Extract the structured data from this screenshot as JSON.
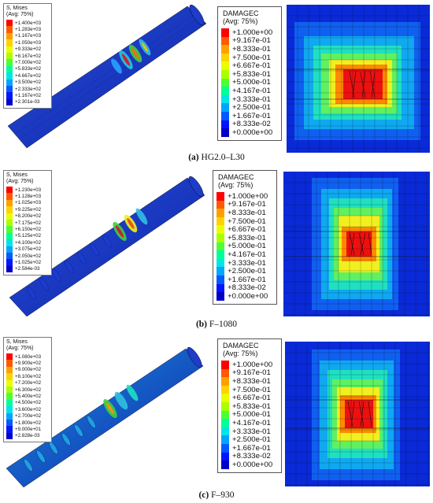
{
  "panels": [
    {
      "caption_letter": "(a)",
      "caption_text": "HG2.0–L30",
      "stress_legend": {
        "title": "S, Mises",
        "subtitle": "(Avg: 75%)",
        "labels": [
          "+1.400e+03",
          "+1.283e+03",
          "+1.167e+03",
          "+1.050e+03",
          "+9.333e+02",
          "+8.167e+02",
          "+7.000e+02",
          "+5.833e+02",
          "+4.667e+02",
          "+3.500e+02",
          "+2.333e+02",
          "+1.167e+02",
          "+2.301e-03"
        ]
      },
      "damage_legend": {
        "title": "DAMAGEC",
        "subtitle": "(Avg: 75%)",
        "labels": [
          "+1.000e+00",
          "+9.167e-01",
          "+8.333e-01",
          "+7.500e-01",
          "+6.667e-01",
          "+5.833e-01",
          "+5.000e-01",
          "+4.167e-01",
          "+3.333e-01",
          "+2.500e-01",
          "+1.667e-01",
          "+8.333e-02",
          "+0.000e+00"
        ]
      }
    },
    {
      "caption_letter": "(b)",
      "caption_text": "F–1080",
      "stress_legend": {
        "title": "S, Mises",
        "subtitle": "(Avg: 75%)",
        "labels": [
          "+1.230e+03",
          "+1.128e+03",
          "+1.025e+03",
          "+9.225e+02",
          "+8.200e+02",
          "+7.175e+02",
          "+6.150e+02",
          "+5.125e+02",
          "+4.100e+02",
          "+3.075e+02",
          "+2.050e+02",
          "+1.025e+02",
          "+2.584e-03"
        ]
      },
      "damage_legend": {
        "title": "DAMAGEC",
        "subtitle": "(Avg: 75%)",
        "labels": [
          "+1.000e+00",
          "+9.167e-01",
          "+8.333e-01",
          "+7.500e-01",
          "+6.667e-01",
          "+5.833e-01",
          "+5.000e-01",
          "+4.167e-01",
          "+3.333e-01",
          "+2.500e-01",
          "+1.667e-01",
          "+8.333e-02",
          "+0.000e+00"
        ]
      }
    },
    {
      "caption_letter": "(c)",
      "caption_text": "F–930",
      "stress_legend": {
        "title": "S, Mises",
        "subtitle": "(Avg: 75%)",
        "labels": [
          "+1.080e+03",
          "+9.900e+02",
          "+9.000e+02",
          "+8.100e+02",
          "+7.200e+02",
          "+6.300e+02",
          "+5.400e+02",
          "+4.500e+02",
          "+3.600e+02",
          "+2.700e+02",
          "+1.800e+02",
          "+9.000e+01",
          "+2.828e-03"
        ]
      },
      "damage_legend": {
        "title": "DAMAGEC",
        "subtitle": "(Avg: 75%)",
        "labels": [
          "+1.000e+00",
          "+9.167e-01",
          "+8.333e-01",
          "+7.500e-01",
          "+6.667e-01",
          "+5.833e-01",
          "+5.000e-01",
          "+4.167e-01",
          "+3.333e-01",
          "+2.500e-01",
          "+1.667e-01",
          "+8.333e-02",
          "+0.000e+00"
        ]
      }
    }
  ],
  "colors": {
    "scale": [
      "#ff0000",
      "#ff5a00",
      "#ffa000",
      "#ffd200",
      "#e8ff00",
      "#aaff00",
      "#4dff33",
      "#00ff99",
      "#00e5e5",
      "#00a5ff",
      "#005aff",
      "#0014ff",
      "#0000c8"
    ]
  }
}
